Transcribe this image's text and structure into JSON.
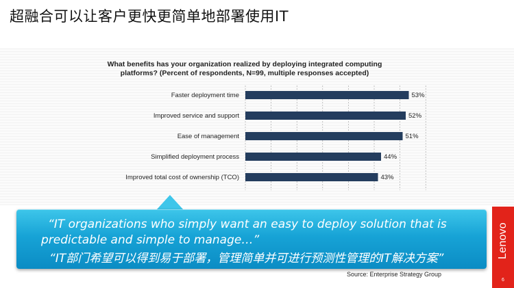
{
  "slide": {
    "title": "超融合可以让客户更快更简单地部署使用IT",
    "page_number": "6"
  },
  "chart_data": {
    "type": "bar",
    "orientation": "horizontal",
    "title_lines": [
      "What benefits has your organization realized by deploying integrated computing",
      "platforms? (Percent of respondents, N=99, multiple responses accepted)"
    ],
    "categories": [
      "Faster deployment time",
      "Improved service and support",
      "Ease of management",
      "Simplified deployment process",
      "Improved total cost of ownership (TCO)"
    ],
    "values": [
      53,
      52,
      51,
      44,
      43
    ],
    "value_labels": [
      "53%",
      "52%",
      "51%",
      "44%",
      "43%"
    ],
    "xlim": [
      0,
      100
    ],
    "grid": true,
    "bar_color": "#243d5e"
  },
  "quote": {
    "line1": "“IT organizations who simply want an easy to deploy solution that is",
    "line2": "predictable and simple to manage…”",
    "line3": "“IT部门希望可以得到易于部署，管理简单并可进行预测性管理的IT解决方案”"
  },
  "source": "Source: Enterprise Strategy Group",
  "brand": {
    "name": "Lenovo",
    "color": "#e2231a"
  }
}
